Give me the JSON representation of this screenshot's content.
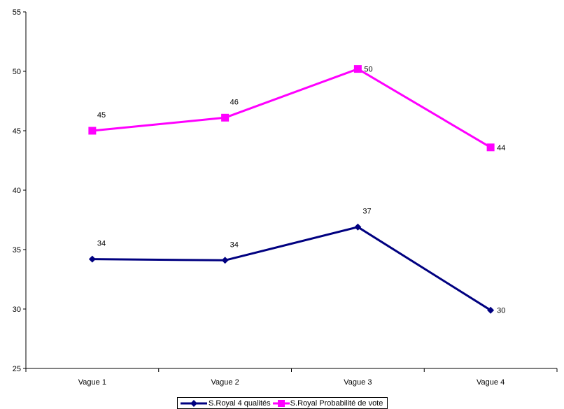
{
  "chart_data": {
    "type": "line",
    "categories": [
      "Vague 1",
      "Vague 2",
      "Vague 3",
      "Vague 4"
    ],
    "ylim": [
      25,
      55
    ],
    "yticks": [
      25,
      30,
      35,
      40,
      45,
      50,
      55
    ],
    "grid": false,
    "legend_position": "bottom",
    "series": [
      {
        "name": "S.Royal 4 qualités",
        "values": [
          34.2,
          34.1,
          36.9,
          29.9
        ],
        "labels": [
          "34",
          "34",
          "37",
          "30"
        ],
        "color": "#000080",
        "marker": "diamond"
      },
      {
        "name": "S.Royal Probabilité de vote",
        "values": [
          45.0,
          46.1,
          50.2,
          43.6
        ],
        "labels": [
          "45",
          "46",
          "50",
          "44"
        ],
        "color": "#FF00FF",
        "marker": "square"
      }
    ]
  }
}
